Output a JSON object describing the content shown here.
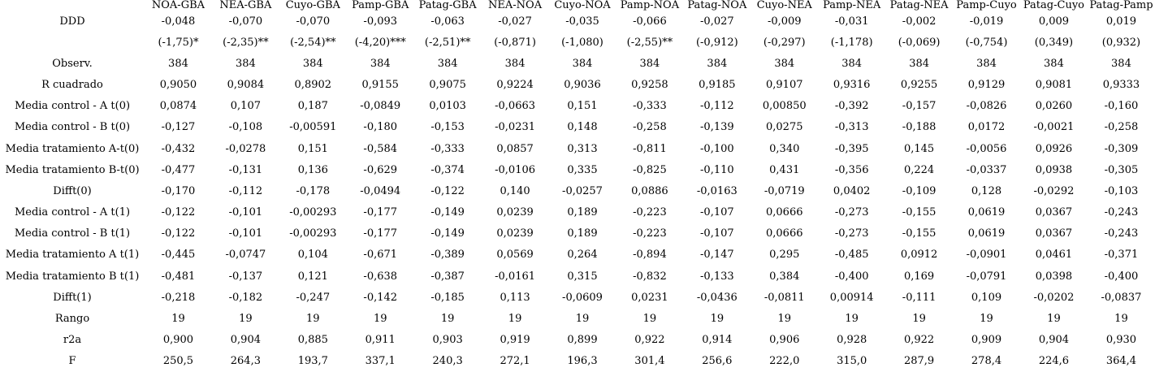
{
  "table": {
    "columns": [
      "NOA-GBA",
      "NEA-GBA",
      "Cuyo-GBA",
      "Pamp-GBA",
      "Patag-GBA",
      "NEA-NOA",
      "Cuyo-NOA",
      "Pamp-NOA",
      "Patag-NOA",
      "Cuyo-NEA",
      "Pamp-NEA",
      "Patag-NEA",
      "Pamp-Cuyo",
      "Patag-Cuyo",
      "Patag-Pamp"
    ],
    "rows": [
      {
        "label": "DDD",
        "values": [
          "-0,048",
          "-0,070",
          "-0,070",
          "-0,093",
          "-0,063",
          "-0,027",
          "-0,035",
          "-0,066",
          "-0,027",
          "-0,009",
          "-0,031",
          "-0,002",
          "-0,019",
          "0,009",
          "0,019"
        ]
      },
      {
        "label": "",
        "values": [
          "(-1,75)*",
          "(-2,35)**",
          "(-2,54)**",
          "(-4,20)***",
          "(-2,51)**",
          "(-0,871)",
          "(-1,080)",
          "(-2,55)**",
          "(-0,912)",
          "(-0,297)",
          "(-1,178)",
          "(-0,069)",
          "(-0,754)",
          "(0,349)",
          "(0,932)"
        ]
      },
      {
        "label": "Observ.",
        "values": [
          "384",
          "384",
          "384",
          "384",
          "384",
          "384",
          "384",
          "384",
          "384",
          "384",
          "384",
          "384",
          "384",
          "384",
          "384"
        ]
      },
      {
        "label": "R cuadrado",
        "values": [
          "0,9050",
          "0,9084",
          "0,8902",
          "0,9155",
          "0,9075",
          "0,9224",
          "0,9036",
          "0,9258",
          "0,9185",
          "0,9107",
          "0,9316",
          "0,9255",
          "0,9129",
          "0,9081",
          "0,9333"
        ]
      },
      {
        "label": "Media control - A t(0)",
        "values": [
          "0,0874",
          "0,107",
          "0,187",
          "-0,0849",
          "0,0103",
          "-0,0663",
          "0,151",
          "-0,333",
          "-0,112",
          "0,00850",
          "-0,392",
          "-0,157",
          "-0,0826",
          "0,0260",
          "-0,160"
        ]
      },
      {
        "label": "Media control - B t(0)",
        "values": [
          "-0,127",
          "-0,108",
          "-0,00591",
          "-0,180",
          "-0,153",
          "-0,0231",
          "0,148",
          "-0,258",
          "-0,139",
          "0,0275",
          "-0,313",
          "-0,188",
          "0,0172",
          "-0,0021",
          "-0,258"
        ]
      },
      {
        "label": "Media tratamiento A-t(0)",
        "values": [
          "-0,432",
          "-0,0278",
          "0,151",
          "-0,584",
          "-0,333",
          "0,0857",
          "0,313",
          "-0,811",
          "-0,100",
          "0,340",
          "-0,395",
          "0,145",
          "-0,0056",
          "0,0926",
          "-0,309"
        ]
      },
      {
        "label": "Media tratamiento B-t(0)",
        "values": [
          "-0,477",
          "-0,131",
          "0,136",
          "-0,629",
          "-0,374",
          "-0,0106",
          "0,335",
          "-0,825",
          "-0,110",
          "0,431",
          "-0,356",
          "0,224",
          "-0,0337",
          "0,0938",
          "-0,305"
        ]
      },
      {
        "label": "Difft(0)",
        "values": [
          "-0,170",
          "-0,112",
          "-0,178",
          "-0,0494",
          "-0,122",
          "0,140",
          "-0,0257",
          "0,0886",
          "-0,0163",
          "-0,0719",
          "0,0402",
          "-0,109",
          "0,128",
          "-0,0292",
          "-0,103"
        ]
      },
      {
        "label": "Media control - A t(1)",
        "values": [
          "-0,122",
          "-0,101",
          "-0,00293",
          "-0,177",
          "-0,149",
          "0,0239",
          "0,189",
          "-0,223",
          "-0,107",
          "0,0666",
          "-0,273",
          "-0,155",
          "0,0619",
          "0,0367",
          "-0,243"
        ]
      },
      {
        "label": "Media control - B t(1)",
        "values": [
          "-0,122",
          "-0,101",
          "-0,00293",
          "-0,177",
          "-0,149",
          "0,0239",
          "0,189",
          "-0,223",
          "-0,107",
          "0,0666",
          "-0,273",
          "-0,155",
          "0,0619",
          "0,0367",
          "-0,243"
        ]
      },
      {
        "label": "Media tratamiento A t(1)",
        "values": [
          "-0,445",
          "-0,0747",
          "0,104",
          "-0,671",
          "-0,389",
          "0,0569",
          "0,264",
          "-0,894",
          "-0,147",
          "0,295",
          "-0,485",
          "0,0912",
          "-0,0901",
          "0,0461",
          "-0,371"
        ]
      },
      {
        "label": "Media tratamiento B t(1)",
        "values": [
          "-0,481",
          "-0,137",
          "0,121",
          "-0,638",
          "-0,387",
          "-0,0161",
          "0,315",
          "-0,832",
          "-0,133",
          "0,384",
          "-0,400",
          "0,169",
          "-0,0791",
          "0,0398",
          "-0,400"
        ]
      },
      {
        "label": "Difft(1)",
        "values": [
          "-0,218",
          "-0,182",
          "-0,247",
          "-0,142",
          "-0,185",
          "0,113",
          "-0,0609",
          "0,0231",
          "-0,0436",
          "-0,0811",
          "0,00914",
          "-0,111",
          "0,109",
          "-0,0202",
          "-0,0837"
        ]
      },
      {
        "label": "Rango",
        "values": [
          "19",
          "19",
          "19",
          "19",
          "19",
          "19",
          "19",
          "19",
          "19",
          "19",
          "19",
          "19",
          "19",
          "19",
          "19"
        ]
      },
      {
        "label": "r2a",
        "values": [
          "0,900",
          "0,904",
          "0,885",
          "0,911",
          "0,903",
          "0,919",
          "0,899",
          "0,922",
          "0,914",
          "0,906",
          "0,928",
          "0,922",
          "0,909",
          "0,904",
          "0,930"
        ]
      },
      {
        "label": "F",
        "values": [
          "250,5",
          "264,3",
          "193,7",
          "337,1",
          "240,3",
          "272,1",
          "196,3",
          "301,4",
          "256,6",
          "222,0",
          "315,0",
          "287,9",
          "278,4",
          "224,6",
          "364,4"
        ]
      }
    ]
  }
}
